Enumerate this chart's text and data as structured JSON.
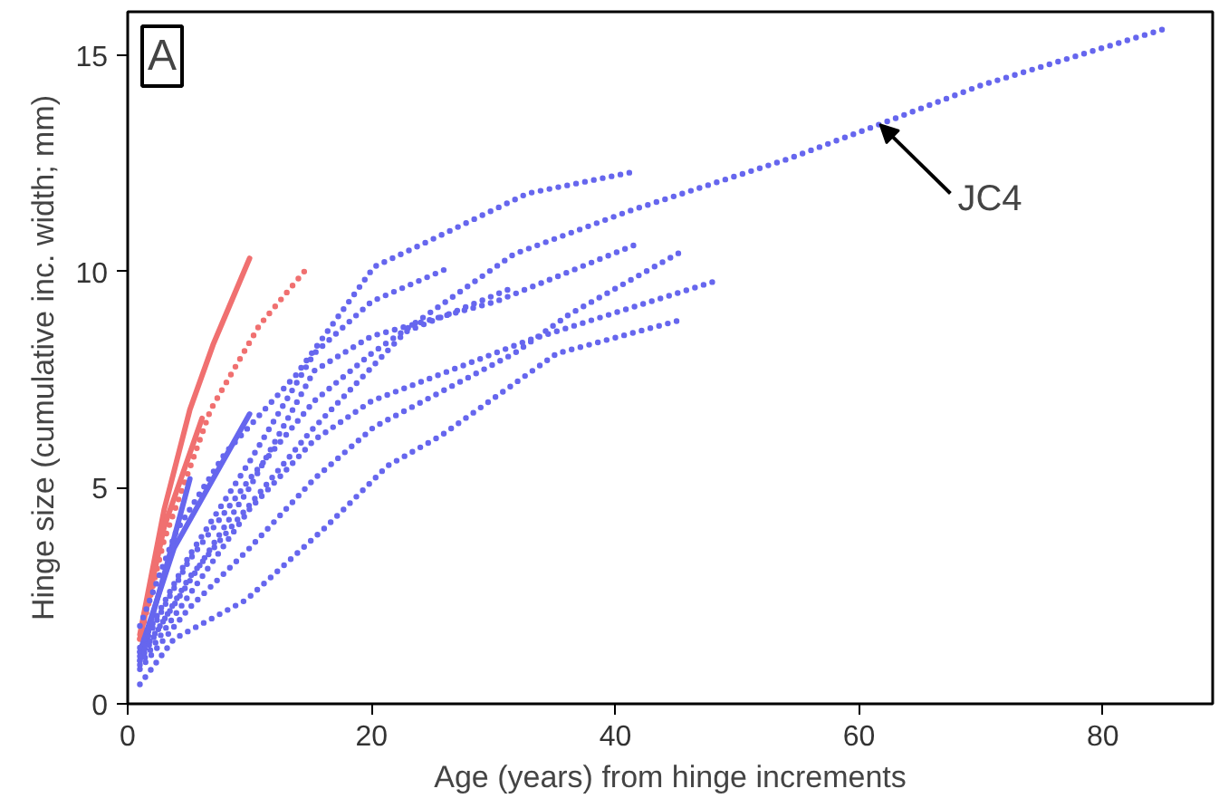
{
  "chart_data": {
    "type": "line",
    "title": "A",
    "xlabel": "Age (years) from hinge increments",
    "ylabel": "Hinge size (cumulative inc. width; mm)",
    "xlim": [
      0,
      89
    ],
    "ylim": [
      0,
      16
    ],
    "xticks": [
      0,
      20,
      40,
      60,
      80
    ],
    "yticks": [
      0,
      5,
      10,
      15
    ],
    "grid": false,
    "annotations": [
      {
        "text": "JC4",
        "x": 61.7,
        "y": 13.4
      }
    ],
    "series": [
      {
        "color": "#f07070",
        "line_style": "solid",
        "x": [
          1,
          3,
          5.1,
          7,
          10
        ],
        "values": [
          1.6,
          4.5,
          6.8,
          8.3,
          10.3
        ]
      },
      {
        "color": "#f07070",
        "line_style": "dotted",
        "x": [
          1,
          3,
          6.8,
          10.8,
          14.5
        ],
        "values": [
          1.5,
          3.8,
          6.8,
          8.75,
          10.0
        ]
      },
      {
        "color": "#f07070",
        "line_style": "solid",
        "x": [
          1,
          3,
          6.1
        ],
        "values": [
          1.5,
          4.1,
          6.6
        ]
      },
      {
        "color": "#6666ee",
        "line_style": "solid",
        "x": [
          1,
          3.8,
          7.8,
          10
        ],
        "values": [
          1.2,
          3.6,
          5.6,
          6.7
        ]
      },
      {
        "color": "#6666ee",
        "line_style": "solid",
        "x": [
          1,
          3.3,
          5.1
        ],
        "values": [
          1.0,
          3.3,
          5.2
        ]
      },
      {
        "color": "#6666ee",
        "line_style": "dotted",
        "x": [
          1,
          5,
          10,
          15.3,
          20,
          31.7,
          41.2,
          54.2,
          61.7,
          70,
          85
        ],
        "values": [
          1.2,
          3.3,
          5.2,
          7.0,
          8.1,
          10.4,
          11.4,
          12.6,
          13.4,
          14.3,
          15.6
        ]
      },
      {
        "color": "#6666ee",
        "line_style": "dotted",
        "x": [
          1,
          5,
          10,
          15,
          22.8,
          31.4
        ],
        "values": [
          1.0,
          2.9,
          4.6,
          6.3,
          8.6,
          9.6
        ]
      },
      {
        "color": "#6666ee",
        "line_style": "dotted",
        "x": [
          1,
          4,
          8,
          13.8,
          20.2,
          24.7,
          32.8,
          41.5
        ],
        "values": [
          1.8,
          4.0,
          5.8,
          7.6,
          10.1,
          10.7,
          11.8,
          12.3
        ]
      },
      {
        "color": "#6666ee",
        "line_style": "dotted",
        "x": [
          1,
          5,
          10,
          15.3,
          20,
          26.5
        ],
        "values": [
          1.3,
          3.4,
          5.6,
          8.1,
          9.3,
          10.1
        ]
      },
      {
        "color": "#6666ee",
        "line_style": "dotted",
        "x": [
          1,
          5,
          10,
          15.3,
          20,
          30.2,
          41.5
        ],
        "values": [
          1.1,
          2.8,
          5.0,
          7.7,
          8.5,
          9.3,
          10.6
        ]
      },
      {
        "color": "#6666ee",
        "line_style": "dotted",
        "x": [
          1,
          5,
          10,
          15.3,
          20.2,
          31.7,
          36.2,
          45.7
        ],
        "values": [
          0.8,
          2.2,
          3.6,
          5.2,
          6.4,
          8.1,
          9.0,
          10.5
        ]
      },
      {
        "color": "#6666ee",
        "line_style": "dotted",
        "x": [
          1,
          5,
          10,
          15.3,
          20,
          32.8,
          48.5
        ],
        "values": [
          0.9,
          2.5,
          4.5,
          6.1,
          7.0,
          8.4,
          9.8
        ]
      },
      {
        "color": "#6666ee",
        "line_style": "dotted",
        "x": [
          1,
          3.8,
          9.7,
          16.3,
          21.3,
          25.7,
          35.2,
          45.7
        ],
        "values": [
          0.45,
          1.5,
          2.4,
          4.1,
          5.5,
          6.2,
          8.1,
          8.9
        ]
      }
    ]
  }
}
